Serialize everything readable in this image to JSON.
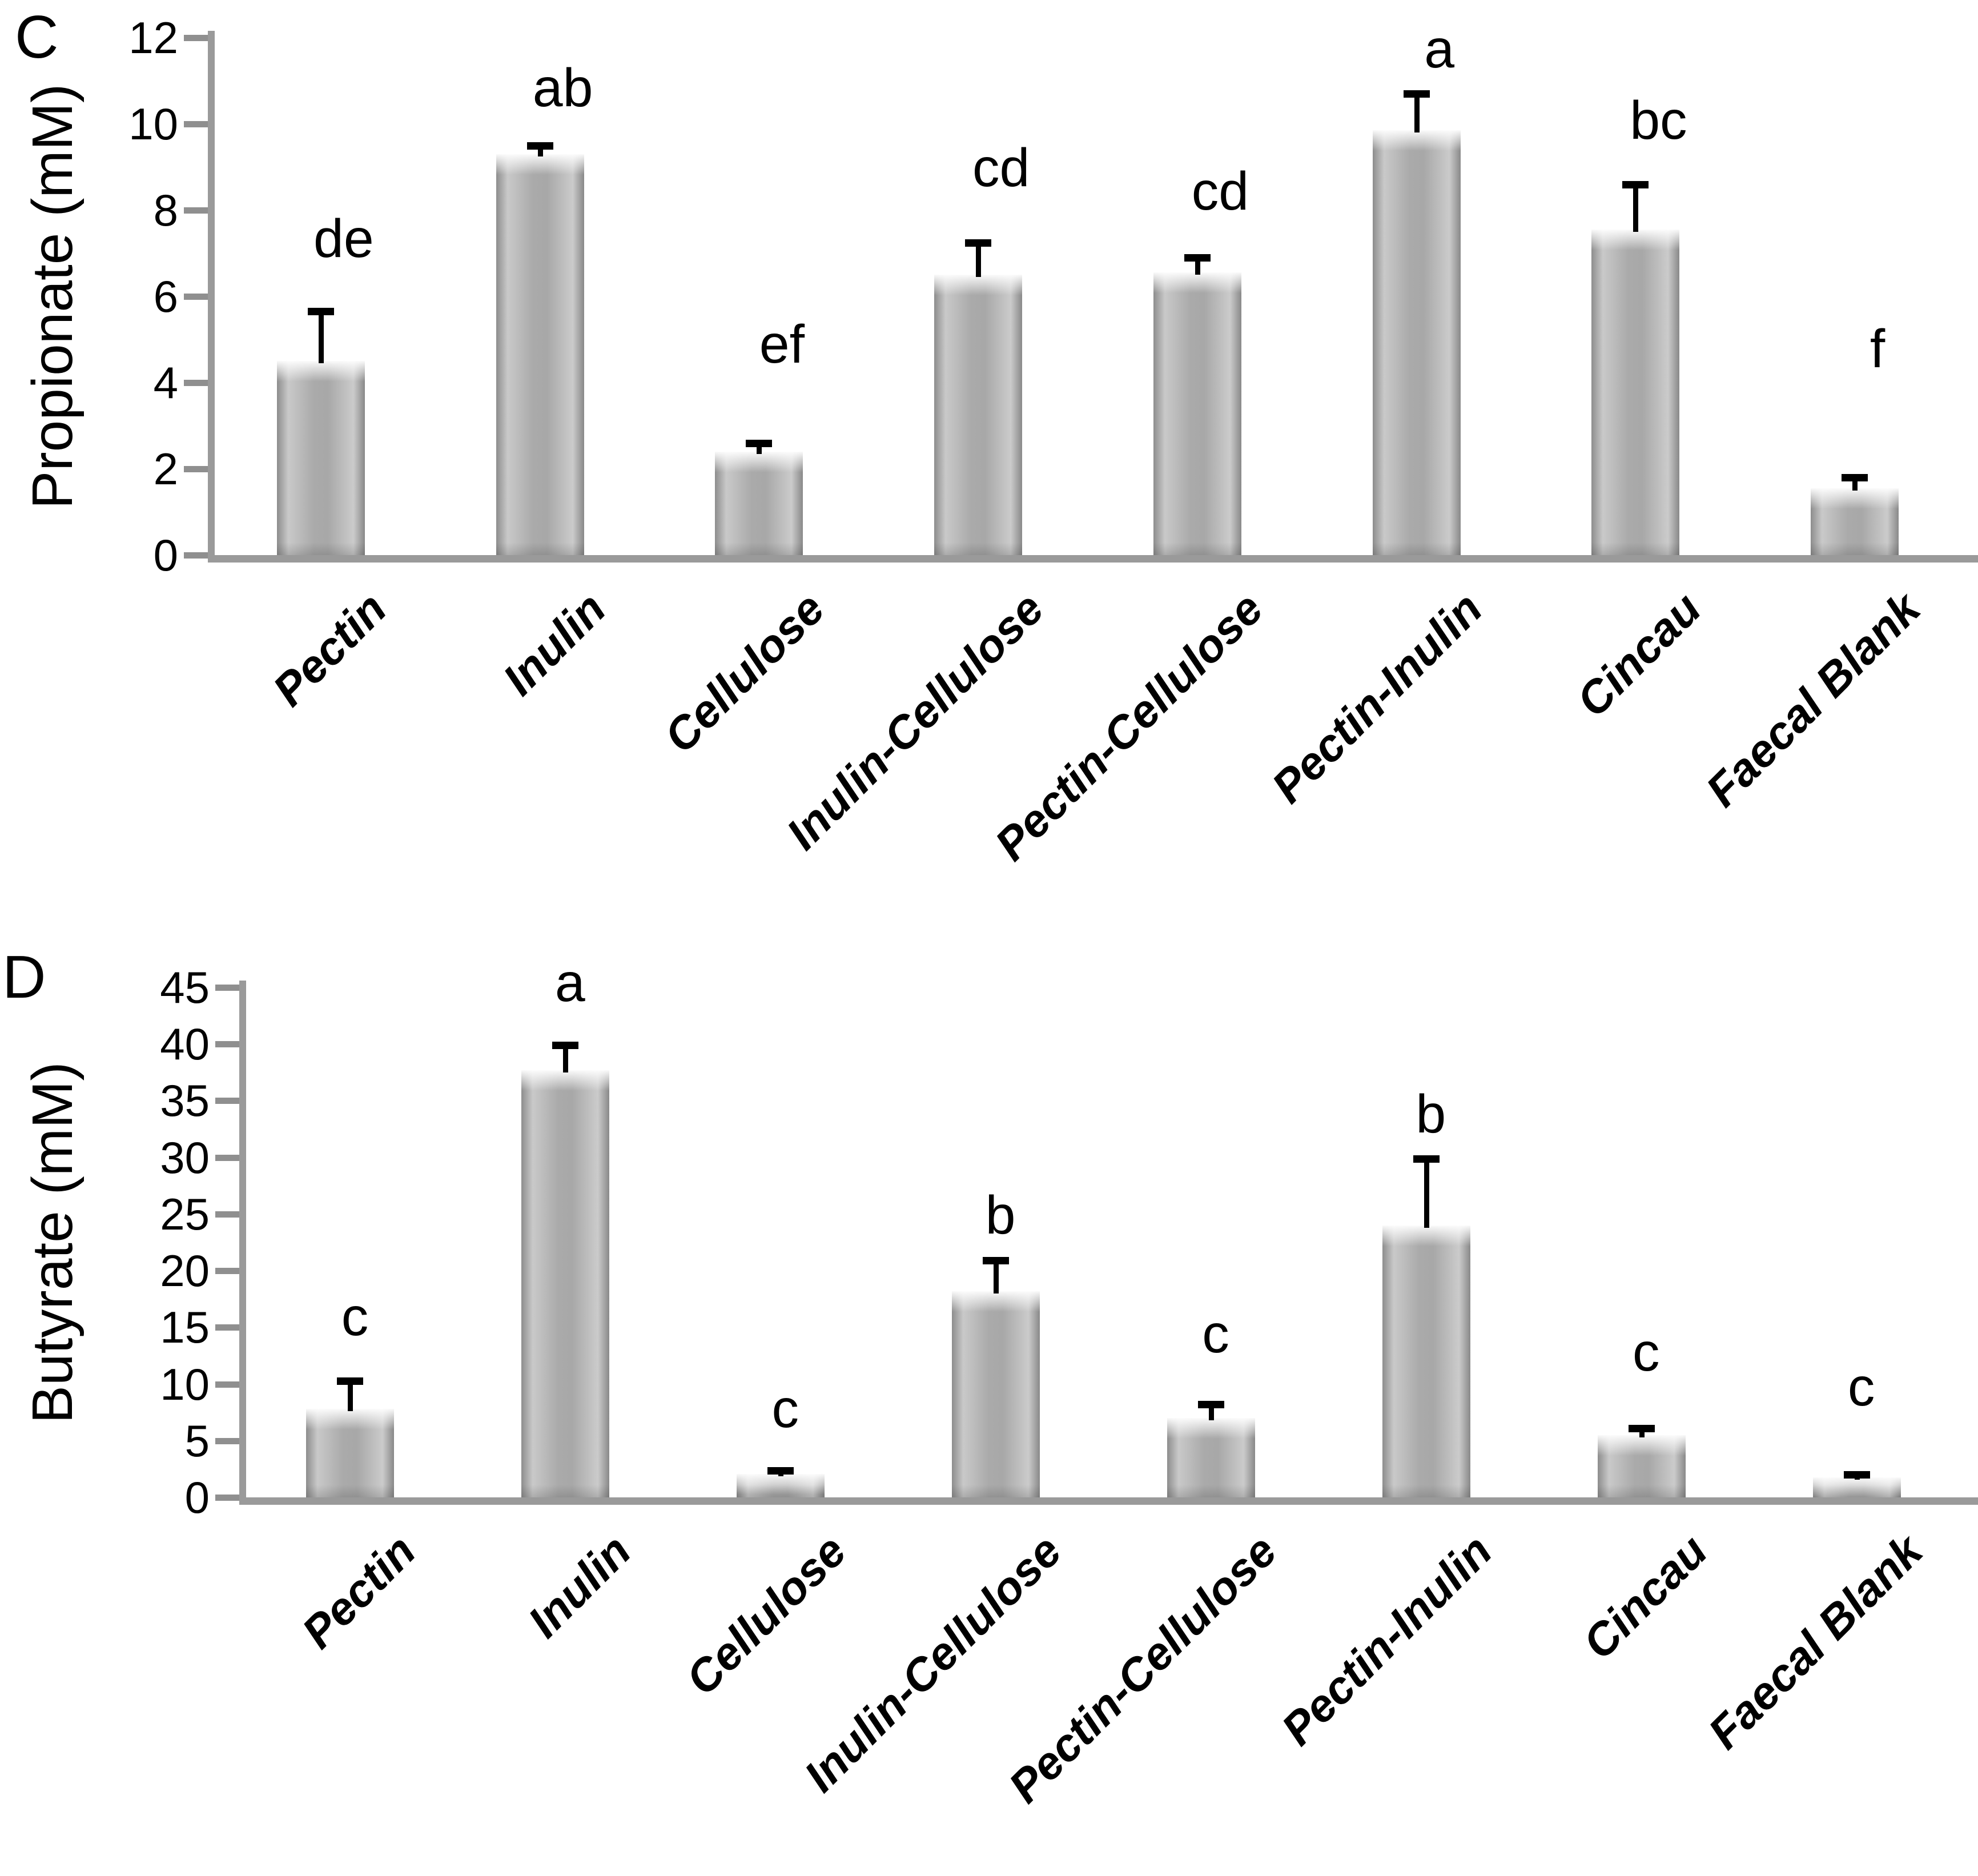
{
  "chart_data": [
    {
      "type": "bar",
      "panel_label": "C",
      "title": "",
      "xlabel": "",
      "ylabel": "Propionate (mM)",
      "ylim": [
        0,
        12
      ],
      "ytick_step": 2,
      "yticks": [
        0,
        2,
        4,
        6,
        8,
        10,
        12
      ],
      "grid": false,
      "legend_position": "none",
      "categories": [
        "Pectin",
        "Inulin",
        "Cellulose",
        "Inulin-Cellulose",
        "Pectin-Cellulose",
        "Pectin-Inulin",
        "Cincau",
        "Faecal Blank"
      ],
      "values": [
        4.5,
        9.3,
        2.4,
        6.5,
        6.55,
        9.85,
        7.55,
        1.55
      ],
      "error_up": [
        1.15,
        0.2,
        0.2,
        0.75,
        0.35,
        0.85,
        1.05,
        0.25
      ],
      "sig_labels": [
        "de",
        "ab",
        "ef",
        "cd",
        "cd",
        "a",
        "bc",
        "f"
      ],
      "sig_label_y": [
        6.7,
        10.2,
        4.25,
        8.35,
        7.8,
        11.1,
        9.45,
        4.15
      ]
    },
    {
      "type": "bar",
      "panel_label": "D",
      "title": "",
      "xlabel": "",
      "ylabel": "Butyrate (mM)",
      "ylim": [
        0,
        45
      ],
      "ytick_step": 5,
      "yticks": [
        0,
        5,
        10,
        15,
        20,
        25,
        30,
        35,
        40,
        45
      ],
      "grid": false,
      "legend_position": "none",
      "categories": [
        "Pectin",
        "Inulin",
        "Cellulose",
        "Inulin-Cellulose",
        "Pectin-Cellulose",
        "Pectin-Inulin",
        "Cincau",
        "Faecal Blank"
      ],
      "values": [
        7.8,
        37.7,
        2.05,
        18.2,
        7.0,
        24.0,
        5.5,
        1.75
      ],
      "error_up": [
        2.5,
        2.2,
        0.3,
        2.7,
        1.2,
        5.9,
        0.6,
        0.25
      ],
      "sig_labels": [
        "c",
        "a",
        "c",
        "b",
        "c",
        "b",
        "c",
        "c"
      ],
      "sig_label_y": [
        13.5,
        43.0,
        5.4,
        22.5,
        12.0,
        31.4,
        10.4,
        7.3
      ]
    }
  ],
  "colors": {
    "background": "#ffffff",
    "bar_fill_mid": "#aaaaaa",
    "bar_fill_edge": "#8d8d8d",
    "bar_highlight": "#f5f5f5",
    "axis": "#9a9a9a",
    "tick": "#8f8f8f",
    "text": "#000000",
    "error_bar": "#000000"
  }
}
